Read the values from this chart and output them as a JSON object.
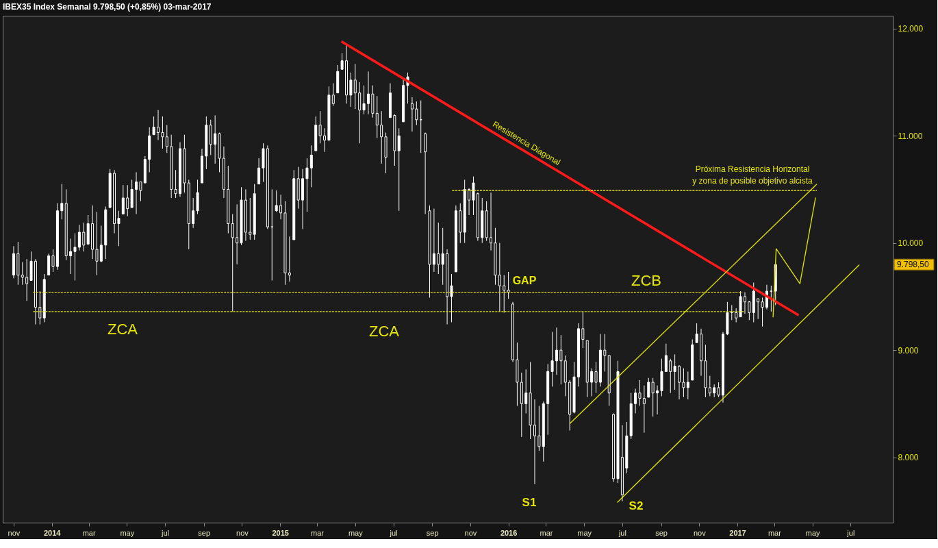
{
  "chart_data": {
    "type": "candlestick",
    "title": "IBEX35 Index   Semanal   9.798,50 (+0,85%)   03-mar-2017",
    "color": "#ffffff",
    "x": [
      "2013-11-01",
      "2013-11-08",
      "2013-11-15",
      "2013-11-22",
      "2013-11-29",
      "2013-12-06",
      "2013-12-13",
      "2013-12-20",
      "2013-12-27",
      "2014-01-03",
      "2014-01-10",
      "2014-01-17",
      "2014-01-24",
      "2014-01-31",
      "2014-02-07",
      "2014-02-14",
      "2014-02-21",
      "2014-02-28",
      "2014-03-07",
      "2014-03-14",
      "2014-03-21",
      "2014-03-28",
      "2014-04-04",
      "2014-04-11",
      "2014-04-18",
      "2014-04-25",
      "2014-05-02",
      "2014-05-09",
      "2014-05-16",
      "2014-05-23",
      "2014-05-30",
      "2014-06-06",
      "2014-06-13",
      "2014-06-20",
      "2014-06-27",
      "2014-07-04",
      "2014-07-11",
      "2014-07-18",
      "2014-07-25",
      "2014-08-01",
      "2014-08-08",
      "2014-08-15",
      "2014-08-22",
      "2014-08-29",
      "2014-09-05",
      "2014-09-12",
      "2014-09-19",
      "2014-09-26",
      "2014-10-03",
      "2014-10-10",
      "2014-10-17",
      "2014-10-24",
      "2014-10-31",
      "2014-11-07",
      "2014-11-14",
      "2014-11-21",
      "2014-11-28",
      "2014-12-05",
      "2014-12-12",
      "2014-12-19",
      "2014-12-26",
      "2015-01-02",
      "2015-01-09",
      "2015-01-16",
      "2015-01-23",
      "2015-01-30",
      "2015-02-06",
      "2015-02-13",
      "2015-02-20",
      "2015-02-27",
      "2015-03-06",
      "2015-03-13",
      "2015-03-20",
      "2015-03-27",
      "2015-04-03",
      "2015-04-10",
      "2015-04-17",
      "2015-04-24",
      "2015-05-01",
      "2015-05-08",
      "2015-05-15",
      "2015-05-22",
      "2015-05-29",
      "2015-06-05",
      "2015-06-12",
      "2015-06-19",
      "2015-06-26",
      "2015-07-03",
      "2015-07-10",
      "2015-07-17",
      "2015-07-24",
      "2015-07-31",
      "2015-08-07",
      "2015-08-14",
      "2015-08-21",
      "2015-08-28",
      "2015-09-04",
      "2015-09-11",
      "2015-09-18",
      "2015-09-25",
      "2015-10-02",
      "2015-10-09",
      "2015-10-16",
      "2015-10-23",
      "2015-10-30",
      "2015-11-06",
      "2015-11-13",
      "2015-11-20",
      "2015-11-27",
      "2015-12-04",
      "2015-12-11",
      "2015-12-18",
      "2015-12-25",
      "2016-01-01",
      "2016-01-08",
      "2016-01-15",
      "2016-01-22",
      "2016-01-29",
      "2016-02-05",
      "2016-02-12",
      "2016-02-19",
      "2016-02-26",
      "2016-03-04",
      "2016-03-11",
      "2016-03-18",
      "2016-03-25",
      "2016-04-01",
      "2016-04-08",
      "2016-04-15",
      "2016-04-22",
      "2016-04-29",
      "2016-05-06",
      "2016-05-13",
      "2016-05-20",
      "2016-05-27",
      "2016-06-03",
      "2016-06-10",
      "2016-06-17",
      "2016-06-24",
      "2016-07-01",
      "2016-07-08",
      "2016-07-15",
      "2016-07-22",
      "2016-07-29",
      "2016-08-05",
      "2016-08-12",
      "2016-08-19",
      "2016-08-26",
      "2016-09-02",
      "2016-09-09",
      "2016-09-16",
      "2016-09-23",
      "2016-09-30",
      "2016-10-07",
      "2016-10-14",
      "2016-10-21",
      "2016-10-28",
      "2016-11-04",
      "2016-11-11",
      "2016-11-18",
      "2016-11-25",
      "2016-12-02",
      "2016-12-09",
      "2016-12-16",
      "2016-12-23",
      "2016-12-30",
      "2017-01-06",
      "2017-01-13",
      "2017-01-20",
      "2017-01-27",
      "2017-02-03",
      "2017-02-10",
      "2017-02-17",
      "2017-02-24",
      "2017-03-03"
    ],
    "ohlc": [
      [
        9700,
        9970,
        9670,
        9900
      ],
      [
        9900,
        10010,
        9610,
        9700
      ],
      [
        9700,
        9820,
        9610,
        9680
      ],
      [
        9680,
        9850,
        9460,
        9620
      ],
      [
        9650,
        9920,
        9650,
        9830
      ],
      [
        9830,
        9850,
        9240,
        9400
      ],
      [
        9400,
        9550,
        9240,
        9300
      ],
      [
        9300,
        9710,
        9260,
        9660
      ],
      [
        9700,
        9900,
        9700,
        9880
      ],
      [
        9880,
        9940,
        9730,
        9780
      ],
      [
        9780,
        10370,
        9750,
        10300
      ],
      [
        10300,
        10550,
        10220,
        10370
      ],
      [
        10370,
        10500,
        9840,
        9880
      ],
      [
        9880,
        10040,
        9710,
        9920
      ],
      [
        9920,
        10090,
        9650,
        9960
      ],
      [
        9960,
        10170,
        9930,
        10100
      ],
      [
        10100,
        10190,
        9920,
        9980
      ],
      [
        9990,
        10260,
        9980,
        10180
      ],
      [
        10180,
        10350,
        9850,
        9940
      ],
      [
        9940,
        10290,
        9700,
        9830
      ],
      [
        9830,
        10160,
        9820,
        9980
      ],
      [
        9980,
        10340,
        9850,
        10310
      ],
      [
        10330,
        10690,
        10330,
        10650
      ],
      [
        10650,
        10680,
        10090,
        10180
      ],
      [
        10180,
        10300,
        9970,
        10230
      ],
      [
        10270,
        10540,
        10270,
        10420
      ],
      [
        10420,
        10540,
        10250,
        10320
      ],
      [
        10330,
        10590,
        10330,
        10500
      ],
      [
        10500,
        10660,
        10270,
        10570
      ],
      [
        10570,
        10570,
        10390,
        10490
      ],
      [
        10560,
        10810,
        10560,
        10780
      ],
      [
        10780,
        11080,
        10660,
        11000
      ],
      [
        11010,
        11180,
        11010,
        11080
      ],
      [
        11080,
        11240,
        10960,
        11030
      ],
      [
        11030,
        11180,
        10880,
        10990
      ],
      [
        10990,
        11100,
        10840,
        10900
      ],
      [
        10900,
        11010,
        10420,
        10500
      ],
      [
        10500,
        10680,
        10420,
        10460
      ],
      [
        10460,
        10940,
        10430,
        10880
      ],
      [
        10880,
        11010,
        10470,
        10560
      ],
      [
        10560,
        10590,
        9940,
        10180
      ],
      [
        10180,
        10420,
        10140,
        10300
      ],
      [
        10300,
        10590,
        10270,
        10470
      ],
      [
        10560,
        10880,
        10560,
        10810
      ],
      [
        10810,
        11180,
        10690,
        11100
      ],
      [
        11100,
        11150,
        10820,
        10920
      ],
      [
        10920,
        11190,
        10740,
        11020
      ],
      [
        11020,
        11030,
        10660,
        10790
      ],
      [
        10790,
        10900,
        10420,
        10500
      ],
      [
        10500,
        10720,
        10090,
        10180
      ],
      [
        10180,
        10270,
        9360,
        10050
      ],
      [
        10050,
        10360,
        9800,
        10000
      ],
      [
        10000,
        10520,
        9980,
        10400
      ],
      [
        10400,
        10500,
        10020,
        10100
      ],
      [
        10100,
        10420,
        10030,
        10080
      ],
      [
        10080,
        10550,
        10030,
        10460
      ],
      [
        10550,
        10790,
        10550,
        10700
      ],
      [
        10700,
        10930,
        10570,
        10880
      ],
      [
        10880,
        10910,
        10130,
        10150
      ],
      [
        10150,
        10500,
        9650,
        10150
      ],
      [
        10300,
        10490,
        10290,
        10350
      ],
      [
        10350,
        10450,
        10220,
        10280
      ],
      [
        10280,
        10390,
        9610,
        9720
      ],
      [
        9720,
        10060,
        9640,
        9700
      ],
      [
        10030,
        10680,
        10030,
        10600
      ],
      [
        10600,
        10710,
        10320,
        10400
      ],
      [
        10400,
        10690,
        10130,
        10600
      ],
      [
        10600,
        10790,
        10290,
        10700
      ],
      [
        10700,
        10910,
        10520,
        10820
      ],
      [
        10860,
        11180,
        10860,
        11100
      ],
      [
        11100,
        11230,
        10930,
        11000
      ],
      [
        11000,
        11070,
        10850,
        10960
      ],
      [
        10960,
        11460,
        10950,
        11380
      ],
      [
        11380,
        11490,
        11280,
        11300
      ],
      [
        11400,
        11660,
        11400,
        11600
      ],
      [
        11620,
        11770,
        11620,
        11700
      ],
      [
        11700,
        11860,
        11300,
        11380
      ],
      [
        11380,
        11590,
        11270,
        11520
      ],
      [
        11520,
        11670,
        11250,
        11400
      ],
      [
        11400,
        11500,
        10930,
        11240
      ],
      [
        11240,
        11470,
        11200,
        11300
      ],
      [
        11300,
        11600,
        11200,
        11390
      ],
      [
        11390,
        11470,
        11170,
        11210
      ],
      [
        11210,
        11370,
        10980,
        11100
      ],
      [
        11100,
        11230,
        10740,
        10990
      ],
      [
        10990,
        11030,
        10650,
        10800
      ],
      [
        11170,
        11490,
        11170,
        11400
      ],
      [
        11190,
        11200,
        10720,
        10860
      ],
      [
        10860,
        11070,
        10300,
        11000
      ],
      [
        11130,
        11540,
        11130,
        11470
      ],
      [
        11470,
        11590,
        11300,
        11550
      ],
      [
        11300,
        11360,
        11040,
        11250
      ],
      [
        11250,
        11320,
        11100,
        11150
      ],
      [
        11150,
        11330,
        10840,
        11150
      ],
      [
        11020,
        11030,
        10270,
        10850
      ],
      [
        10300,
        10350,
        9490,
        9800
      ],
      [
        9800,
        10320,
        9730,
        9900
      ],
      [
        9900,
        10190,
        9710,
        9800
      ],
      [
        9800,
        10140,
        9610,
        9900
      ],
      [
        9900,
        9940,
        9240,
        9500
      ],
      [
        9500,
        9710,
        9260,
        9600
      ],
      [
        9730,
        10350,
        9730,
        10300
      ],
      [
        10300,
        10370,
        10000,
        10100
      ],
      [
        10100,
        10590,
        10000,
        10500
      ],
      [
        10500,
        10510,
        10260,
        10400
      ],
      [
        10400,
        10620,
        10260,
        10560
      ],
      [
        10460,
        10470,
        10020,
        10050
      ],
      [
        10050,
        10420,
        10000,
        10300
      ],
      [
        10300,
        10390,
        10020,
        10050
      ],
      [
        10050,
        10470,
        9930,
        10000
      ],
      [
        10000,
        10140,
        9610,
        9700
      ],
      [
        9700,
        10000,
        9360,
        9600
      ],
      [
        9600,
        9700,
        9350,
        9560
      ],
      [
        9560,
        9730,
        9480,
        9540
      ],
      [
        9430,
        9450,
        8890,
        8910
      ],
      [
        8910,
        9070,
        8480,
        8700
      ],
      [
        8700,
        8790,
        8190,
        8500
      ],
      [
        8500,
        8820,
        8410,
        8600
      ],
      [
        8600,
        8890,
        8170,
        8300
      ],
      [
        8300,
        8540,
        7750,
        8200
      ],
      [
        8200,
        8480,
        8060,
        8100
      ],
      [
        8100,
        8520,
        7960,
        8500
      ],
      [
        8500,
        8870,
        8210,
        8800
      ],
      [
        8800,
        9170,
        8660,
        8900
      ],
      [
        8900,
        9210,
        8770,
        9000
      ],
      [
        9000,
        9140,
        8680,
        8900
      ],
      [
        8900,
        8950,
        8570,
        8700
      ],
      [
        8700,
        8720,
        8250,
        8400
      ],
      [
        8420,
        8890,
        8410,
        8750
      ],
      [
        8750,
        9250,
        8660,
        9200
      ],
      [
        9200,
        9360,
        9020,
        9100
      ],
      [
        9090,
        9090,
        8560,
        8700
      ],
      [
        8700,
        8830,
        8570,
        8800
      ],
      [
        8800,
        8890,
        8600,
        8700
      ],
      [
        8700,
        9150,
        8660,
        9000
      ],
      [
        9000,
        9150,
        8800,
        8950
      ],
      [
        8950,
        8950,
        8480,
        8600
      ],
      [
        8400,
        8410,
        7770,
        7800
      ],
      [
        7800,
        8900,
        7760,
        8800
      ],
      [
        8000,
        8300,
        7590,
        7650
      ],
      [
        7900,
        8330,
        7850,
        8200
      ],
      [
        8200,
        8600,
        8170,
        8500
      ],
      [
        8500,
        8640,
        8410,
        8600
      ],
      [
        8600,
        8720,
        8480,
        8550
      ],
      [
        8550,
        8670,
        8230,
        8500
      ],
      [
        8560,
        8740,
        8560,
        8700
      ],
      [
        8700,
        8740,
        8380,
        8600
      ],
      [
        8600,
        8670,
        8400,
        8620
      ],
      [
        8620,
        8920,
        8570,
        8800
      ],
      [
        8800,
        9060,
        8800,
        8950
      ],
      [
        8900,
        8920,
        8600,
        8800
      ],
      [
        8800,
        8960,
        8630,
        8850
      ],
      [
        8850,
        8860,
        8540,
        8700
      ],
      [
        8700,
        8830,
        8560,
        8650
      ],
      [
        8650,
        8800,
        8540,
        8700
      ],
      [
        8720,
        9100,
        8720,
        9050
      ],
      [
        9070,
        9250,
        9070,
        9150
      ],
      [
        9150,
        9200,
        8760,
        8900
      ],
      [
        8900,
        9050,
        8560,
        8650
      ],
      [
        8650,
        8760,
        8570,
        8600
      ],
      [
        8600,
        8680,
        8560,
        8650
      ],
      [
        8650,
        8700,
        8560,
        8580
      ],
      [
        8580,
        9170,
        8510,
        9150
      ],
      [
        9150,
        9450,
        9140,
        9350
      ],
      [
        9350,
        9420,
        9280,
        9350
      ],
      [
        9350,
        9390,
        9260,
        9300
      ],
      [
        9310,
        9550,
        9310,
        9500
      ],
      [
        9500,
        9540,
        9340,
        9450
      ],
      [
        9450,
        9460,
        9280,
        9350
      ],
      [
        9350,
        9630,
        9260,
        9550
      ],
      [
        9480,
        9480,
        9290,
        9450
      ],
      [
        9450,
        9490,
        9220,
        9400
      ],
      [
        9400,
        9610,
        9380,
        9550
      ],
      [
        9550,
        9600,
        9360,
        9550
      ],
      [
        9550,
        9800,
        9420,
        9798.5
      ]
    ],
    "series": [
      {
        "type": "line",
        "x": [
          "2015-04-09",
          "2017-04-09"
        ],
        "values": [
          11880,
          9325
        ],
        "color": "#ff1a1a",
        "line_style": "solid"
      },
      {
        "type": "line",
        "x": [
          "2016-04-08",
          "2017-05-08"
        ],
        "values": [
          8314,
          10549
        ],
        "color": "#e6e600",
        "line_style": "solid"
      },
      {
        "type": "line",
        "x": [
          "2016-06-23",
          "2017-07-15"
        ],
        "values": [
          7579,
          9796
        ],
        "color": "#e6e600",
        "line_style": "solid"
      },
      {
        "type": "line",
        "x": [
          "2013-12-02",
          "2017-01-09"
        ],
        "values": [
          9540,
          9540
        ],
        "color": "#e6e600",
        "line_style": "dashed"
      },
      {
        "type": "line",
        "x": [
          "2013-12-02",
          "2017-01-12"
        ],
        "values": [
          9360,
          9360
        ],
        "color": "#e6e600",
        "line_style": "dashed"
      },
      {
        "type": "line",
        "x": [
          "2015-10-03",
          "2017-05-08"
        ],
        "values": [
          10490,
          10490
        ],
        "color": "#e6e600",
        "line_style": "dashed"
      },
      {
        "type": "line",
        "x": [
          "2017-02-27",
          "2017-03-04",
          "2017-04-11",
          "2017-05-06"
        ],
        "values": [
          9306,
          9946,
          9620,
          10424
        ],
        "color": "#e6e600",
        "line_style": "solid"
      }
    ],
    "annotations": [
      "ZCA",
      "ZCA",
      "GAP",
      "ZCB",
      "S1",
      "S2",
      "Resistencia Diagonal",
      "Próxima Resistencia Horizontal\ny zona de posible objetivo alcista",
      "9.798,50"
    ],
    "xlim": [
      "2013-10-20",
      "2017-09-01"
    ],
    "xticks": [
      {
        "value": "2013-11-01",
        "label": "nov"
      },
      {
        "value": "2014-01-01",
        "label": "2014"
      },
      {
        "value": "2014-03-01",
        "label": "mar"
      },
      {
        "value": "2014-05-01",
        "label": "may"
      },
      {
        "value": "2014-07-01",
        "label": "jul"
      },
      {
        "value": "2014-09-01",
        "label": "sep"
      },
      {
        "value": "2014-11-01",
        "label": "nov"
      },
      {
        "value": "2015-01-01",
        "label": "2015"
      },
      {
        "value": "2015-03-01",
        "label": "mar"
      },
      {
        "value": "2015-05-01",
        "label": "may"
      },
      {
        "value": "2015-07-01",
        "label": "jul"
      },
      {
        "value": "2015-09-01",
        "label": "sep"
      },
      {
        "value": "2015-11-01",
        "label": "nov"
      },
      {
        "value": "2016-01-01",
        "label": "2016"
      },
      {
        "value": "2016-03-01",
        "label": "mar"
      },
      {
        "value": "2016-05-01",
        "label": "may"
      },
      {
        "value": "2016-07-01",
        "label": "jul"
      },
      {
        "value": "2016-09-01",
        "label": "sep"
      },
      {
        "value": "2016-11-01",
        "label": "nov"
      },
      {
        "value": "2017-01-01",
        "label": "2017"
      },
      {
        "value": "2017-03-01",
        "label": "mar"
      },
      {
        "value": "2017-05-01",
        "label": "may"
      },
      {
        "value": "2017-07-01",
        "label": "jul"
      }
    ],
    "ylim": [
      7390,
      12120
    ],
    "yticks": [
      {
        "value": 8000,
        "label": "8.000"
      },
      {
        "value": 9000,
        "label": "9.000"
      },
      {
        "value": 10000,
        "label": "10.000"
      },
      {
        "value": 11000,
        "label": "11.000"
      },
      {
        "value": 12000,
        "label": "12.000"
      }
    ],
    "grid": false
  }
}
